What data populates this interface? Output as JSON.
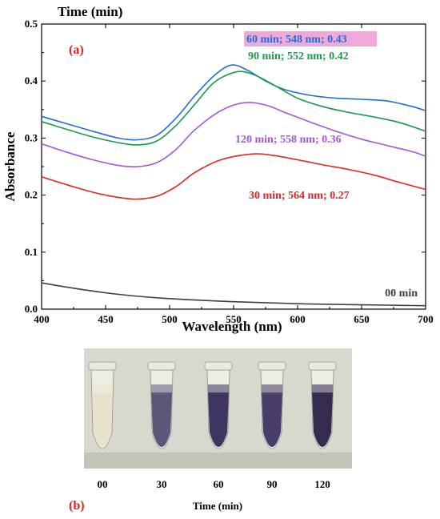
{
  "chart_data": {
    "type": "line",
    "panel_label": "(a)",
    "top_label": "Time (min)",
    "xlabel": "Wavelength (nm)",
    "ylabel": "Absorbance",
    "xlim": [
      400,
      700
    ],
    "ylim": [
      0.0,
      0.5
    ],
    "xticks": [
      "400",
      "450",
      "500",
      "550",
      "600",
      "650",
      "700"
    ],
    "yticks": [
      "0.0",
      "0.1",
      "0.2",
      "0.3",
      "0.4",
      "0.5"
    ],
    "xtick_values": [
      400,
      450,
      500,
      550,
      600,
      650,
      700
    ],
    "ytick_values": [
      0.0,
      0.1,
      0.2,
      0.3,
      0.4,
      0.5
    ],
    "grid": false,
    "series": [
      {
        "name": "60 min; 548 nm; 0.43",
        "color": "#1f6fd6",
        "highlight": "#f0a8d8",
        "x": [
          400,
          420,
          440,
          460,
          475,
          490,
          505,
          520,
          535,
          548,
          560,
          575,
          590,
          610,
          630,
          650,
          670,
          690,
          700
        ],
        "y": [
          0.338,
          0.325,
          0.312,
          0.3,
          0.297,
          0.305,
          0.335,
          0.375,
          0.41,
          0.428,
          0.42,
          0.4,
          0.385,
          0.375,
          0.37,
          0.368,
          0.365,
          0.355,
          0.348
        ]
      },
      {
        "name": "90 min; 552 nm; 0.42",
        "color": "#1a9a4a",
        "x": [
          400,
          420,
          440,
          460,
          475,
          490,
          505,
          520,
          535,
          552,
          565,
          580,
          600,
          620,
          640,
          660,
          680,
          700
        ],
        "y": [
          0.329,
          0.315,
          0.302,
          0.292,
          0.288,
          0.295,
          0.322,
          0.36,
          0.398,
          0.416,
          0.412,
          0.395,
          0.37,
          0.355,
          0.345,
          0.337,
          0.327,
          0.312
        ]
      },
      {
        "name": "120 min; 558 nm; 0.36",
        "color": "#a855d8",
        "x": [
          400,
          420,
          440,
          460,
          475,
          490,
          505,
          520,
          540,
          558,
          575,
          590,
          610,
          630,
          650,
          670,
          690,
          700
        ],
        "y": [
          0.29,
          0.275,
          0.262,
          0.252,
          0.25,
          0.257,
          0.28,
          0.315,
          0.348,
          0.362,
          0.358,
          0.345,
          0.328,
          0.312,
          0.298,
          0.287,
          0.276,
          0.268
        ]
      },
      {
        "name": "30 min; 564 nm; 0.27",
        "color": "#e02525",
        "x": [
          400,
          420,
          440,
          460,
          475,
          490,
          505,
          520,
          540,
          564,
          580,
          600,
          620,
          640,
          660,
          680,
          700
        ],
        "y": [
          0.232,
          0.218,
          0.205,
          0.196,
          0.193,
          0.198,
          0.215,
          0.24,
          0.262,
          0.272,
          0.27,
          0.262,
          0.253,
          0.245,
          0.235,
          0.222,
          0.21
        ]
      },
      {
        "name": "00 min",
        "color": "#404040",
        "x": [
          400,
          430,
          460,
          490,
          520,
          550,
          580,
          610,
          640,
          670,
          700
        ],
        "y": [
          0.046,
          0.035,
          0.026,
          0.02,
          0.016,
          0.013,
          0.011,
          0.009,
          0.008,
          0.007,
          0.006
        ]
      }
    ]
  },
  "photo_panel": {
    "panel_label": "(b)",
    "xlabel": "Time (min)",
    "tubes": [
      {
        "label": "00",
        "fill": "#ece8d6",
        "liquid": "#e6e2cc"
      },
      {
        "label": "30",
        "fill": "#6d6782",
        "liquid": "#5d5678"
      },
      {
        "label": "60",
        "fill": "#4a4168",
        "liquid": "#3f3560"
      },
      {
        "label": "90",
        "fill": "#554a72",
        "liquid": "#473d68"
      },
      {
        "label": "120",
        "fill": "#3f3558",
        "liquid": "#352b4e"
      }
    ]
  }
}
